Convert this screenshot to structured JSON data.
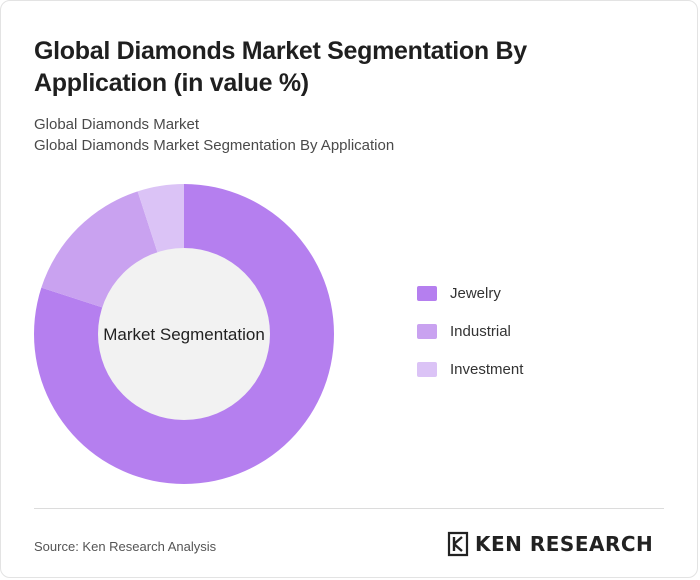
{
  "title": "Global Diamonds Market Segmentation By Application (in value %)",
  "subtitle_1": "Global Diamonds Market",
  "subtitle_2": "Global Diamonds Market Segmentation By Application",
  "center_label": "Market Segmentation",
  "source": "Source: Ken Research Analysis",
  "brand": "KEN RESEARCH",
  "logo_icon": "ken-research-logo-icon",
  "colors": {
    "jewelry": "#b57fef",
    "industrial": "#c9a2f0",
    "investment": "#dbc3f6",
    "hole": "#f2f2f2"
  },
  "chart_data": {
    "type": "pie",
    "donut": true,
    "categories": [
      "Jewelry",
      "Industrial",
      "Investment"
    ],
    "values": [
      80,
      15,
      5
    ],
    "unit": "%",
    "title": "Global Diamonds Market Segmentation By Application (in value %)",
    "center_label": "Market Segmentation",
    "legend": "right"
  }
}
